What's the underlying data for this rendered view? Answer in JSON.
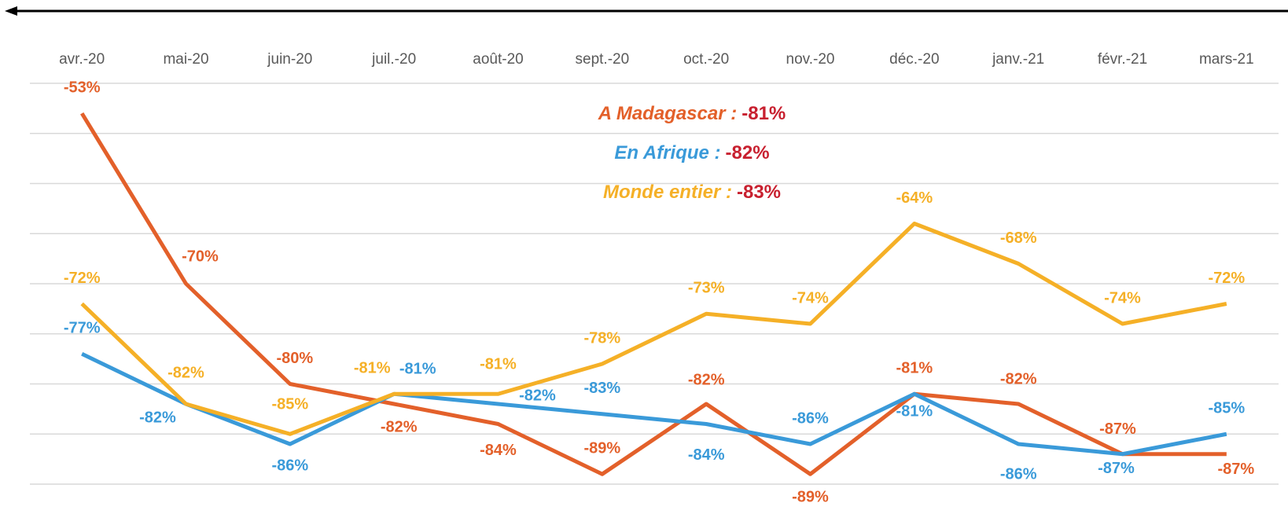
{
  "chart_data": {
    "type": "line",
    "categories": [
      "avr.-20",
      "mai-20",
      "juin-20",
      "juil.-20",
      "août-20",
      "sept.-20",
      "oct.-20",
      "nov.-20",
      "déc.-20",
      "janv.-21",
      "févr.-21",
      "mars-21"
    ],
    "series": [
      {
        "name": "A Madagascar :",
        "color": "#e3602a",
        "total": -81,
        "total_label": "-81%",
        "values": [
          -53,
          -70,
          -80,
          -82,
          -84,
          -89,
          -82,
          -89,
          -81,
          -82,
          -87,
          -87
        ],
        "value_labels": [
          "-53%",
          "-70%",
          "-80%",
          "-82%",
          "-84%",
          "-89%",
          "-82%",
          "-89%",
          "-81%",
          "-82%",
          "-87%",
          "-87%"
        ]
      },
      {
        "name": "En Afrique :",
        "color": "#3a9ad9",
        "total": -82,
        "total_label": "-82%",
        "values": [
          -77,
          -82,
          -86,
          -81,
          -82,
          -83,
          -84,
          -86,
          -81,
          -86,
          -87,
          -85
        ],
        "value_labels": [
          "-77%",
          "-82%",
          "-86%",
          "-81%",
          "-82%",
          "-83%",
          "-84%",
          "-86%",
          "-81%",
          "-86%",
          "-87%",
          "-85%"
        ]
      },
      {
        "name": "Monde entier :",
        "color": "#f5b027",
        "total": -83,
        "total_label": "-83%",
        "values": [
          -72,
          -82,
          -85,
          -81,
          -81,
          -78,
          -73,
          -74,
          -64,
          -68,
          -74,
          -72
        ],
        "value_labels": [
          "-72%",
          "-82%",
          "-85%",
          "-81%",
          "-81%",
          "-78%",
          "-73%",
          "-74%",
          "-64%",
          "-68%",
          "-74%",
          "-72%"
        ]
      }
    ],
    "total_color": "#c8202f",
    "ylim": [
      -90,
      -50
    ],
    "yticks": [
      -50,
      -55,
      -60,
      -65,
      -70,
      -75,
      -80,
      -85,
      -90
    ],
    "grid": true
  }
}
